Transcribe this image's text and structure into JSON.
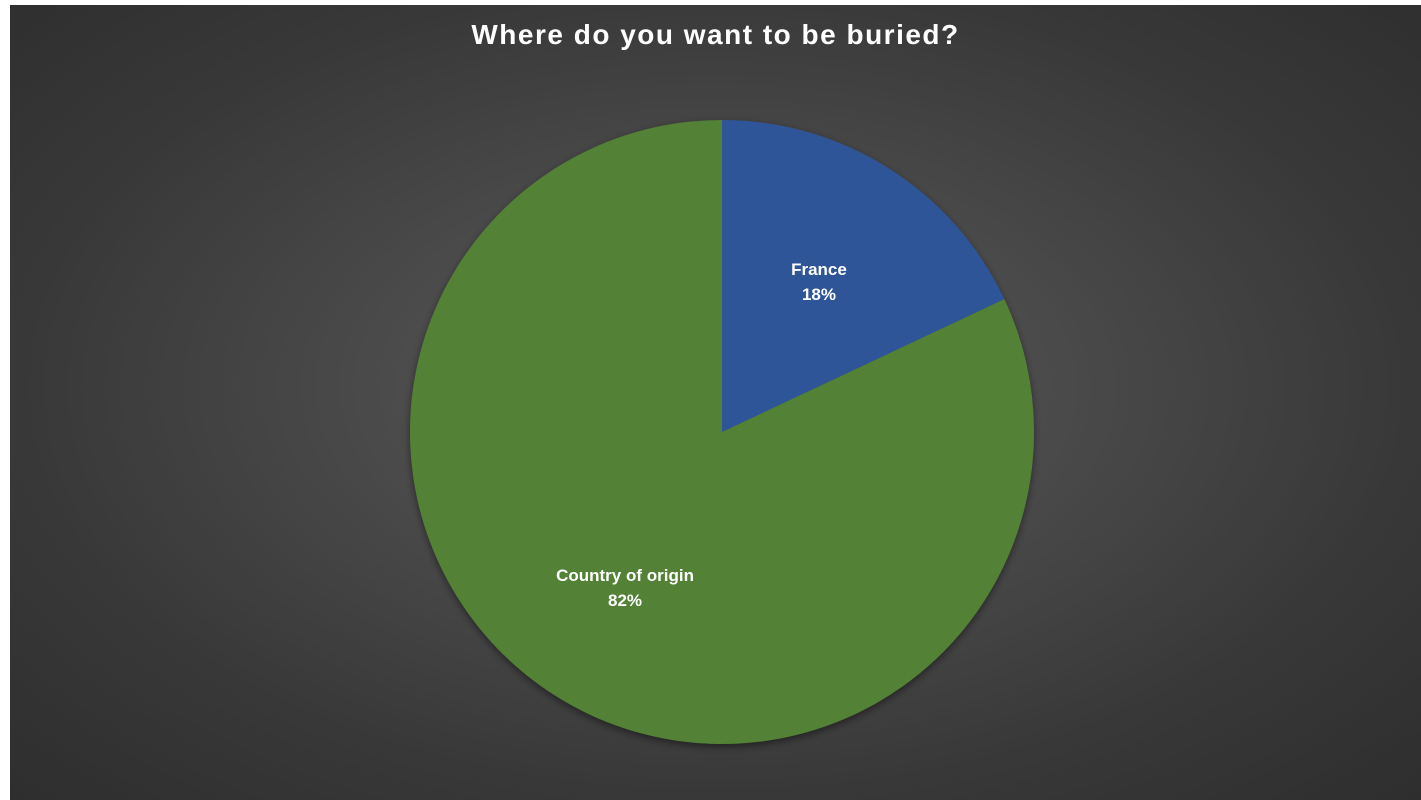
{
  "chart_data": {
    "type": "pie",
    "title": "Where do you want to be buried?",
    "categories": [
      "France",
      "Country of origin"
    ],
    "values": [
      18,
      82
    ],
    "value_labels": [
      "18%",
      "82%"
    ],
    "colors": [
      "#2f5597",
      "#538135"
    ],
    "legend": "none",
    "start_angle": "12 o'clock, clockwise"
  }
}
